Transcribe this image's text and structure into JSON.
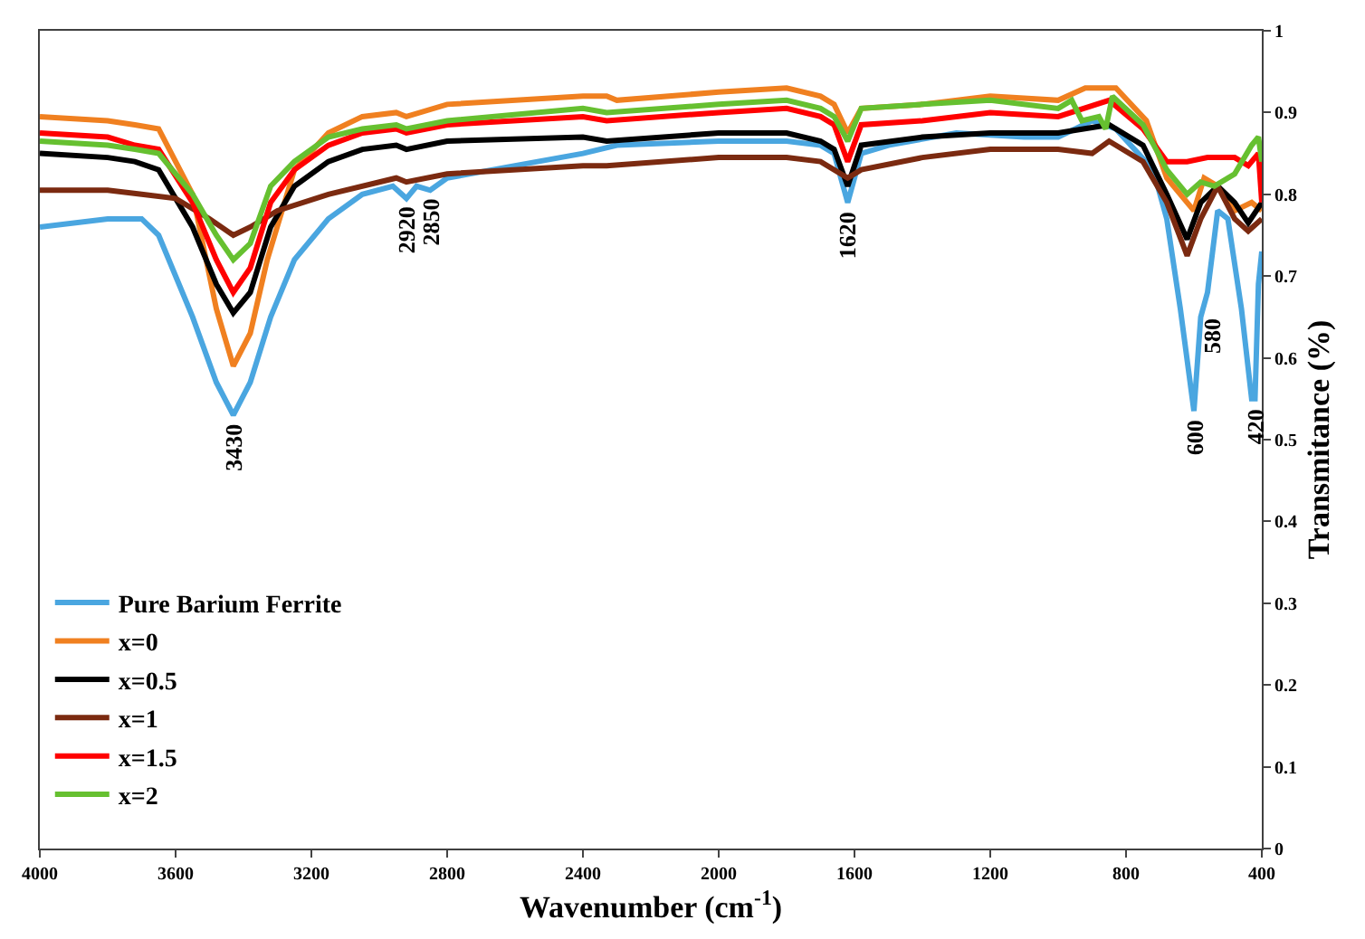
{
  "chart_data": {
    "type": "line",
    "xlabel": "Wavenumber (cm$^{-1}$)",
    "ylabel": "Transmitance (%)",
    "xlim": [
      4000,
      400
    ],
    "xticks": [
      4000,
      3600,
      3200,
      2800,
      2400,
      2000,
      1600,
      1200,
      800,
      400
    ],
    "ylim": [
      0,
      1
    ],
    "yticks": [
      0,
      0.1,
      0.2,
      0.3,
      0.4,
      0.5,
      0.6,
      0.7,
      0.8,
      0.9,
      1
    ],
    "legend": "bottom left",
    "marker": "none",
    "line_style": "solid",
    "series": [
      {
        "name": "Pure Barium Ferrite",
        "color": "#4aa6e0",
        "x": [
          4000,
          3800,
          3700,
          3650,
          3550,
          3480,
          3430,
          3380,
          3320,
          3250,
          3150,
          3050,
          2960,
          2920,
          2890,
          2850,
          2800,
          2600,
          2400,
          2300,
          2000,
          1800,
          1700,
          1660,
          1620,
          1580,
          1500,
          1300,
          1100,
          1000,
          900,
          830,
          720,
          680,
          640,
          600,
          580,
          560,
          530,
          500,
          460,
          430,
          420,
          410,
          400
        ],
        "values": [
          0.76,
          0.77,
          0.77,
          0.75,
          0.65,
          0.57,
          0.53,
          0.57,
          0.65,
          0.72,
          0.77,
          0.8,
          0.81,
          0.795,
          0.81,
          0.805,
          0.82,
          0.835,
          0.85,
          0.86,
          0.865,
          0.865,
          0.86,
          0.85,
          0.79,
          0.85,
          0.86,
          0.875,
          0.87,
          0.87,
          0.89,
          0.88,
          0.83,
          0.77,
          0.66,
          0.535,
          0.65,
          0.68,
          0.78,
          0.77,
          0.66,
          0.55,
          0.55,
          0.69,
          0.73
        ]
      },
      {
        "name": "x=0",
        "color": "#f08020",
        "x": [
          4000,
          3800,
          3720,
          3650,
          3550,
          3480,
          3430,
          3380,
          3330,
          3250,
          3150,
          3050,
          2950,
          2920,
          2800,
          2400,
          2330,
          2300,
          2000,
          1800,
          1700,
          1660,
          1620,
          1580,
          1400,
          1200,
          1000,
          920,
          830,
          740,
          680,
          640,
          600,
          570,
          530,
          480,
          430,
          400
        ],
        "values": [
          0.895,
          0.89,
          0.885,
          0.88,
          0.8,
          0.66,
          0.59,
          0.63,
          0.72,
          0.83,
          0.875,
          0.895,
          0.9,
          0.895,
          0.91,
          0.92,
          0.92,
          0.915,
          0.925,
          0.93,
          0.92,
          0.91,
          0.875,
          0.905,
          0.91,
          0.92,
          0.915,
          0.93,
          0.93,
          0.89,
          0.82,
          0.8,
          0.78,
          0.82,
          0.81,
          0.78,
          0.79,
          0.78
        ]
      },
      {
        "name": "x=0.5",
        "color": "#000000",
        "x": [
          4000,
          3800,
          3720,
          3650,
          3550,
          3480,
          3430,
          3380,
          3320,
          3250,
          3150,
          3050,
          2950,
          2920,
          2800,
          2400,
          2330,
          2000,
          1800,
          1700,
          1660,
          1620,
          1580,
          1400,
          1200,
          1000,
          850,
          750,
          680,
          620,
          580,
          530,
          480,
          440,
          400
        ],
        "values": [
          0.85,
          0.845,
          0.84,
          0.83,
          0.76,
          0.69,
          0.655,
          0.68,
          0.76,
          0.81,
          0.84,
          0.855,
          0.86,
          0.855,
          0.865,
          0.87,
          0.865,
          0.875,
          0.875,
          0.865,
          0.855,
          0.81,
          0.86,
          0.87,
          0.875,
          0.875,
          0.885,
          0.86,
          0.8,
          0.745,
          0.79,
          0.81,
          0.79,
          0.765,
          0.79
        ]
      },
      {
        "name": "x=1",
        "color": "#7b2a10",
        "x": [
          4000,
          3800,
          3700,
          3600,
          3500,
          3430,
          3380,
          3300,
          3150,
          2950,
          2920,
          2800,
          2400,
          2330,
          2000,
          1800,
          1700,
          1620,
          1580,
          1400,
          1200,
          1000,
          900,
          850,
          750,
          680,
          620,
          580,
          530,
          480,
          440,
          400
        ],
        "values": [
          0.805,
          0.805,
          0.8,
          0.795,
          0.77,
          0.75,
          0.76,
          0.78,
          0.8,
          0.82,
          0.815,
          0.825,
          0.835,
          0.835,
          0.845,
          0.845,
          0.84,
          0.82,
          0.83,
          0.845,
          0.855,
          0.855,
          0.85,
          0.865,
          0.84,
          0.79,
          0.725,
          0.77,
          0.81,
          0.77,
          0.755,
          0.77
        ]
      },
      {
        "name": "x=1.5",
        "color": "#ff0000",
        "x": [
          4000,
          3800,
          3720,
          3650,
          3550,
          3480,
          3430,
          3380,
          3320,
          3250,
          3150,
          3050,
          2950,
          2920,
          2800,
          2400,
          2330,
          2000,
          1800,
          1700,
          1660,
          1620,
          1580,
          1400,
          1200,
          1000,
          850,
          750,
          680,
          620,
          560,
          480,
          440,
          410,
          400
        ],
        "values": [
          0.875,
          0.87,
          0.86,
          0.855,
          0.79,
          0.72,
          0.68,
          0.71,
          0.79,
          0.83,
          0.86,
          0.875,
          0.88,
          0.875,
          0.885,
          0.895,
          0.89,
          0.9,
          0.905,
          0.895,
          0.885,
          0.84,
          0.885,
          0.89,
          0.9,
          0.895,
          0.915,
          0.88,
          0.84,
          0.84,
          0.845,
          0.845,
          0.835,
          0.85,
          0.79
        ]
      },
      {
        "name": "x=2",
        "color": "#66c030",
        "x": [
          4000,
          3800,
          3720,
          3650,
          3550,
          3480,
          3430,
          3380,
          3320,
          3250,
          3150,
          3050,
          2950,
          2920,
          2800,
          2400,
          2330,
          2000,
          1800,
          1700,
          1660,
          1620,
          1580,
          1400,
          1200,
          1000,
          960,
          930,
          880,
          860,
          840,
          750,
          680,
          620,
          580,
          540,
          480,
          430,
          410,
          400
        ],
        "values": [
          0.865,
          0.86,
          0.855,
          0.85,
          0.8,
          0.75,
          0.72,
          0.74,
          0.81,
          0.84,
          0.87,
          0.88,
          0.885,
          0.88,
          0.89,
          0.905,
          0.9,
          0.91,
          0.915,
          0.905,
          0.895,
          0.865,
          0.905,
          0.91,
          0.915,
          0.905,
          0.915,
          0.89,
          0.895,
          0.88,
          0.92,
          0.885,
          0.83,
          0.8,
          0.815,
          0.81,
          0.825,
          0.86,
          0.87,
          0.84
        ]
      }
    ],
    "annotations": [
      {
        "text": "3430",
        "x": 3430,
        "y": 0.53
      },
      {
        "text": "2920",
        "x": 2920,
        "y": 0.795
      },
      {
        "text": "2850",
        "x": 2850,
        "y": 0.805
      },
      {
        "text": "1620",
        "x": 1620,
        "y": 0.79
      },
      {
        "text": "600",
        "x": 600,
        "y": 0.535
      },
      {
        "text": "580",
        "x": 545,
        "y": 0.66
      },
      {
        "text": "420",
        "x": 420,
        "y": 0.55
      }
    ]
  }
}
